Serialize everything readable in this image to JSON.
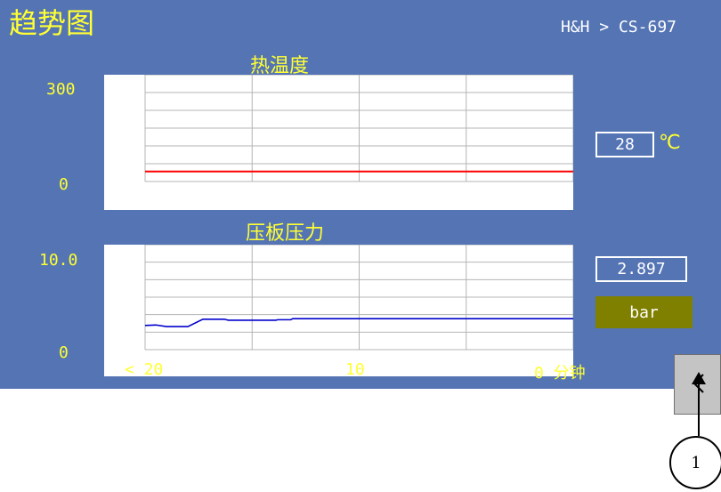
{
  "header": {
    "title": "趋势图",
    "breadcrumb": "H&H > CS-697"
  },
  "temperature": {
    "title": "热温度",
    "ymax_label": "300",
    "ymin_label": "0",
    "ylim": [
      0,
      300
    ],
    "readout": "28",
    "unit": "℃",
    "line_color": "#ff0000",
    "values": [
      28,
      28
    ]
  },
  "pressure": {
    "title": "压板压力",
    "ymax_label": "10.0",
    "ymin_label": "0",
    "ylim": [
      0,
      10.0
    ],
    "readout": "2.897",
    "unit": "bar",
    "line_color": "#0000cc",
    "points": [
      [
        20,
        2.3
      ],
      [
        19.5,
        2.35
      ],
      [
        19,
        2.2
      ],
      [
        18,
        2.2
      ],
      [
        17.3,
        2.9
      ],
      [
        16.3,
        2.9
      ],
      [
        16.1,
        2.8
      ],
      [
        13.9,
        2.8
      ],
      [
        13.8,
        2.85
      ],
      [
        13.2,
        2.85
      ],
      [
        13.1,
        2.95
      ],
      [
        0,
        2.95
      ]
    ]
  },
  "x_axis": {
    "left_label": "< 20",
    "mid_label": "10",
    "right_label": "0 分钟"
  },
  "nav": {
    "back_label": "<"
  },
  "callout": {
    "number": "1"
  },
  "chart_data": [
    {
      "type": "line",
      "title": "热温度",
      "x": [
        20,
        0
      ],
      "series": [
        {
          "values": [
            28,
            28
          ]
        }
      ],
      "ylim": [
        0,
        300
      ],
      "xlim": [
        20,
        0
      ],
      "grid": true
    },
    {
      "type": "line",
      "title": "压板压力",
      "x": [
        20,
        19.5,
        19,
        18,
        17.3,
        16.3,
        16.1,
        13.9,
        13.8,
        13.2,
        13.1,
        0
      ],
      "series": [
        {
          "values": [
            2.3,
            2.35,
            2.2,
            2.2,
            2.9,
            2.9,
            2.8,
            2.8,
            2.85,
            2.85,
            2.95,
            2.95
          ]
        }
      ],
      "ylim": [
        0,
        10
      ],
      "xlim": [
        20,
        0
      ],
      "grid": true
    }
  ]
}
